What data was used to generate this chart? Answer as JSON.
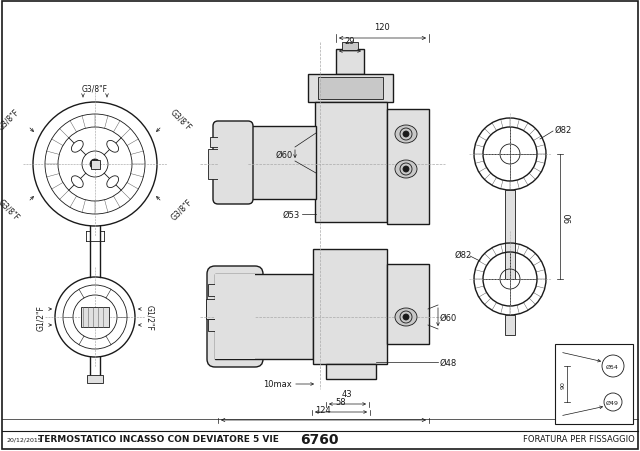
{
  "bg_color": "#ffffff",
  "line_color": "#1a1a1a",
  "title": "TERMOSTATICO INCASSO CON DEVIATORE 5 VIE",
  "code": "6760",
  "date": "20/12/2015",
  "footer_right": "FORATURA PER FISSAGGIO",
  "gray_fill": "#c8c8c8",
  "light_gray": "#e0e0e0",
  "hatch_color": "#555555",
  "dim_120": "120",
  "dim_29": "29",
  "dim_d82_1": "Ø82",
  "dim_d82_2": "Ø82",
  "dim_d60_1": "Ø60",
  "dim_d60_2": "Ø60",
  "dim_d53": "Ø53",
  "dim_d48": "Ø48",
  "dim_d54": "Ø54",
  "dim_d49": "Ø49",
  "dim_90": "90",
  "dim_43": "43",
  "dim_58": "58",
  "dim_124": "124",
  "dim_10max": "10max",
  "g38": "G3/8\"F",
  "g12": "G1/2\"F"
}
